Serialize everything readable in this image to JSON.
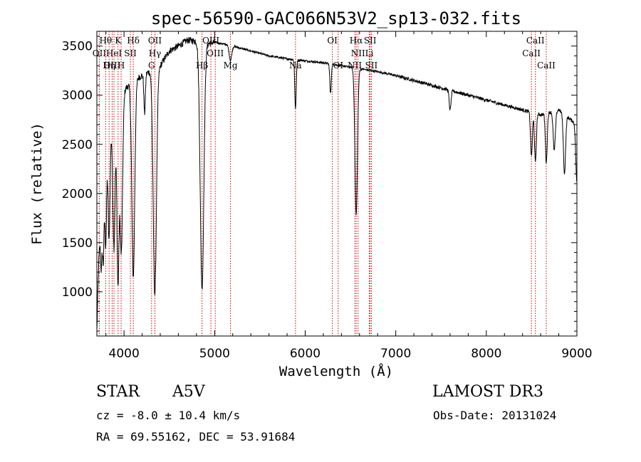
{
  "chart_data": {
    "type": "line",
    "title": "spec-56590-GAC066N53V2_sp13-032.fits",
    "xlabel": "Wavelength (Å)",
    "ylabel": "Flux (relative)",
    "xlim": [
      3700,
      9000
    ],
    "ylim": [
      550,
      3650
    ],
    "xticks": [
      4000,
      5000,
      6000,
      7000,
      8000,
      9000
    ],
    "yticks": [
      1000,
      1500,
      2000,
      2500,
      3000,
      3500
    ],
    "grid": false,
    "line_color": "#000000",
    "marker_color": "#cc0000",
    "continuum": [
      [
        3700,
        600
      ],
      [
        3720,
        1300
      ],
      [
        3760,
        1900
      ],
      [
        3800,
        2300
      ],
      [
        3850,
        2600
      ],
      [
        3900,
        2800
      ],
      [
        3950,
        2950
      ],
      [
        4000,
        3050
      ],
      [
        4100,
        3150
      ],
      [
        4200,
        3200
      ],
      [
        4300,
        3250
      ],
      [
        4400,
        3300
      ],
      [
        4500,
        3450
      ],
      [
        4600,
        3500
      ],
      [
        4700,
        3560
      ],
      [
        4800,
        3550
      ],
      [
        4900,
        3520
      ],
      [
        5000,
        3540
      ],
      [
        5200,
        3500
      ],
      [
        5400,
        3450
      ],
      [
        5600,
        3400
      ],
      [
        5800,
        3370
      ],
      [
        6000,
        3350
      ],
      [
        6200,
        3330
      ],
      [
        6400,
        3300
      ],
      [
        6600,
        3270
      ],
      [
        6800,
        3240
      ],
      [
        7000,
        3200
      ],
      [
        7200,
        3150
      ],
      [
        7400,
        3100
      ],
      [
        7600,
        3050
      ],
      [
        7800,
        3000
      ],
      [
        8000,
        2950
      ],
      [
        8200,
        2900
      ],
      [
        8400,
        2850
      ],
      [
        8600,
        2800
      ],
      [
        8800,
        2850
      ],
      [
        9000,
        2700
      ]
    ],
    "absorption": [
      [
        3750,
        500,
        8
      ],
      [
        3771,
        700,
        8
      ],
      [
        3798,
        800,
        9
      ],
      [
        3835,
        1000,
        10
      ],
      [
        3889,
        1300,
        12
      ],
      [
        3933,
        1800,
        12
      ],
      [
        3970,
        1600,
        14
      ],
      [
        4102,
        2000,
        16
      ],
      [
        4227,
        400,
        8
      ],
      [
        4340,
        2300,
        18
      ],
      [
        4861,
        2500,
        20
      ],
      [
        5175,
        150,
        14
      ],
      [
        5893,
        500,
        8
      ],
      [
        6280,
        300,
        8
      ],
      [
        6563,
        1500,
        14
      ],
      [
        7600,
        200,
        10
      ],
      [
        8498,
        450,
        10
      ],
      [
        8542,
        500,
        10
      ],
      [
        8662,
        500,
        10
      ],
      [
        8750,
        400,
        12
      ],
      [
        8863,
        600,
        12
      ],
      [
        9000,
        600,
        12
      ]
    ],
    "lines": [
      {
        "label": "Hθ",
        "wavelength": 3797,
        "row": 0
      },
      {
        "label": "K",
        "wavelength": 3934,
        "row": 0
      },
      {
        "label": "Hδ",
        "wavelength": 4102,
        "row": 0
      },
      {
        "label": "OII",
        "wavelength": 4341,
        "row": 0
      },
      {
        "label": "OIII",
        "wavelength": 4959,
        "row": 0
      },
      {
        "label": "OI",
        "wavelength": 6300,
        "row": 0
      },
      {
        "label": "Hα",
        "wavelength": 6563,
        "row": 0
      },
      {
        "label": "SII",
        "wavelength": 6717,
        "row": 0
      },
      {
        "label": "CaII",
        "wavelength": 8542,
        "row": 0
      },
      {
        "label": "OII",
        "wavelength": 3727,
        "row": 1
      },
      {
        "label": "HeI",
        "wavelength": 3889,
        "row": 1
      },
      {
        "label": "SII",
        "wavelength": 4070,
        "row": 1
      },
      {
        "label": "Hγ",
        "wavelength": 4341,
        "row": 1
      },
      {
        "label": "OIII",
        "wavelength": 5007,
        "row": 1
      },
      {
        "label": "NII",
        "wavelength": 6584,
        "row": 1
      },
      {
        "label": "Li",
        "wavelength": 6708,
        "row": 1
      },
      {
        "label": "CaII",
        "wavelength": 8498,
        "row": 1
      },
      {
        "label": "OIII",
        "wavelength": 3869,
        "row": 2
      },
      {
        "label": "Hη",
        "wavelength": 3835,
        "row": 2
      },
      {
        "label": "H",
        "wavelength": 3968,
        "row": 2
      },
      {
        "label": "G",
        "wavelength": 4304,
        "row": 2
      },
      {
        "label": "Hβ",
        "wavelength": 4861,
        "row": 2
      },
      {
        "label": "Mg",
        "wavelength": 5175,
        "row": 2
      },
      {
        "label": "Na",
        "wavelength": 5893,
        "row": 2
      },
      {
        "label": "OI",
        "wavelength": 6364,
        "row": 2
      },
      {
        "label": "NII",
        "wavelength": 6548,
        "row": 2
      },
      {
        "label": "SII",
        "wavelength": 6731,
        "row": 2
      },
      {
        "label": "CaII",
        "wavelength": 8662,
        "row": 2
      }
    ]
  },
  "info": {
    "object_class": "STAR",
    "subclass": "A5V",
    "survey": "LAMOST DR3",
    "redshift": "cz = -8.0 ± 10.4 km/s",
    "obs_date": "Obs-Date: 20131024",
    "coords": "RA =  69.55162, DEC =  53.91684"
  }
}
